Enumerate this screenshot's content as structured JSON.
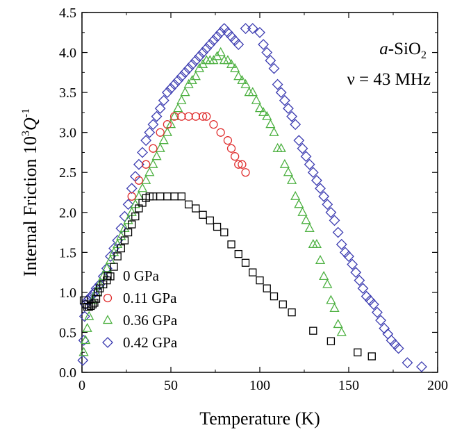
{
  "chart_data": {
    "type": "scatter",
    "title": "",
    "xlabel": "Temperature (K)",
    "ylabel": {
      "main": "Internal Friction 10",
      "exp": "3",
      "q": "Q",
      "qexp": "-1"
    },
    "xlim": [
      0,
      200
    ],
    "ylim": [
      0,
      4.5
    ],
    "xticks": [
      "0",
      "50",
      "100",
      "150",
      "200"
    ],
    "yticks": [
      "0.0",
      "0.5",
      "1.0",
      "1.5",
      "2.0",
      "2.5",
      "3.0",
      "3.5",
      "4.0",
      "4.5"
    ],
    "grid": false,
    "legend_position": "bottom-left",
    "annotations": {
      "material_italic": "a",
      "material_rest": "-SiO",
      "material_sub": "2",
      "frequency": "ν = 43 MHz"
    },
    "series": [
      {
        "name": "0 GPa",
        "marker": "square",
        "color": "#000000",
        "x": [
          1,
          2,
          3,
          4,
          5,
          6,
          7,
          8,
          9,
          10,
          12,
          14,
          16,
          18,
          20,
          22,
          24,
          26,
          28,
          30,
          32,
          34,
          36,
          38,
          40,
          44,
          48,
          52,
          56,
          60,
          64,
          68,
          72,
          76,
          80,
          84,
          88,
          92,
          96,
          100,
          104,
          108,
          113,
          118,
          130,
          140,
          155,
          163
        ],
        "y": [
          0.9,
          0.85,
          0.82,
          0.82,
          0.83,
          0.85,
          0.87,
          0.92,
          1.0,
          1.05,
          1.1,
          1.15,
          1.2,
          1.32,
          1.45,
          1.55,
          1.65,
          1.75,
          1.85,
          1.95,
          2.05,
          2.12,
          2.18,
          2.2,
          2.2,
          2.2,
          2.2,
          2.2,
          2.2,
          2.1,
          2.05,
          1.97,
          1.9,
          1.82,
          1.75,
          1.6,
          1.48,
          1.37,
          1.25,
          1.15,
          1.05,
          0.95,
          0.85,
          0.75,
          0.52,
          0.39,
          0.25,
          0.2
        ]
      },
      {
        "name": "0.11 GPa",
        "marker": "circle",
        "color": "#e03030",
        "x": [
          28,
          32,
          36,
          40,
          44,
          48,
          52,
          56,
          60,
          64,
          68,
          70,
          74,
          78,
          82,
          84,
          86,
          88,
          90,
          92
        ],
        "y": [
          2.2,
          2.4,
          2.6,
          2.8,
          3.0,
          3.1,
          3.2,
          3.2,
          3.2,
          3.2,
          3.2,
          3.2,
          3.1,
          3.0,
          2.9,
          2.8,
          2.7,
          2.6,
          2.6,
          2.5
        ]
      },
      {
        "name": "0.36 GPa",
        "marker": "triangle",
        "color": "#4cb040",
        "x": [
          1,
          2,
          3,
          4,
          6,
          8,
          10,
          12,
          14,
          16,
          18,
          20,
          22,
          24,
          26,
          28,
          30,
          32,
          34,
          36,
          38,
          40,
          42,
          44,
          46,
          48,
          50,
          52,
          54,
          56,
          58,
          60,
          62,
          64,
          66,
          68,
          70,
          72,
          74,
          76,
          78,
          80,
          82,
          84,
          86,
          88,
          90,
          92,
          94,
          96,
          98,
          100,
          102,
          104,
          106,
          108,
          110,
          112,
          114,
          116,
          118,
          120,
          122,
          124,
          126,
          128,
          130,
          132,
          134,
          136,
          138,
          140,
          142,
          144,
          146
        ],
        "y": [
          0.25,
          0.4,
          0.55,
          0.7,
          0.9,
          1.0,
          1.1,
          1.2,
          1.3,
          1.4,
          1.5,
          1.6,
          1.7,
          1.8,
          1.9,
          2.0,
          2.1,
          2.2,
          2.3,
          2.4,
          2.5,
          2.6,
          2.7,
          2.8,
          2.9,
          3.0,
          3.1,
          3.2,
          3.3,
          3.4,
          3.5,
          3.6,
          3.65,
          3.7,
          3.8,
          3.85,
          3.9,
          3.9,
          3.9,
          3.95,
          4.0,
          3.9,
          3.9,
          3.85,
          3.8,
          3.7,
          3.65,
          3.6,
          3.5,
          3.5,
          3.4,
          3.3,
          3.25,
          3.2,
          3.1,
          3.0,
          2.8,
          2.8,
          2.6,
          2.5,
          2.4,
          2.2,
          2.1,
          2.0,
          1.9,
          1.8,
          1.6,
          1.6,
          1.4,
          1.2,
          1.1,
          0.9,
          0.8,
          0.6,
          0.5
        ]
      },
      {
        "name": "0.42 GPa",
        "marker": "diamond",
        "color": "#3a3ab0",
        "x": [
          0.5,
          1,
          1.5,
          2,
          3,
          4,
          5,
          6,
          7,
          8,
          10,
          12,
          14,
          16,
          18,
          20,
          22,
          24,
          26,
          28,
          30,
          32,
          34,
          36,
          38,
          40,
          42,
          44,
          46,
          48,
          50,
          52,
          54,
          56,
          58,
          60,
          62,
          64,
          66,
          68,
          70,
          72,
          74,
          76,
          78,
          80,
          82,
          84,
          86,
          88,
          92,
          96,
          100,
          102,
          104,
          106,
          108,
          110,
          112,
          114,
          116,
          118,
          120,
          122,
          124,
          126,
          128,
          130,
          132,
          134,
          136,
          138,
          140,
          142,
          144,
          146,
          148,
          150,
          152,
          154,
          156,
          158,
          160,
          162,
          164,
          166,
          168,
          170,
          172,
          174,
          176,
          178,
          183,
          191
        ],
        "y": [
          0.15,
          0.4,
          0.7,
          0.85,
          0.9,
          0.92,
          0.95,
          0.97,
          1.0,
          1.05,
          1.1,
          1.2,
          1.3,
          1.45,
          1.55,
          1.65,
          1.8,
          1.95,
          2.1,
          2.3,
          2.45,
          2.6,
          2.75,
          2.9,
          3.0,
          3.1,
          3.2,
          3.3,
          3.4,
          3.5,
          3.55,
          3.6,
          3.65,
          3.7,
          3.75,
          3.8,
          3.85,
          3.9,
          3.95,
          4.0,
          4.05,
          4.1,
          4.15,
          4.2,
          4.25,
          4.3,
          4.25,
          4.2,
          4.15,
          4.1,
          4.3,
          4.3,
          4.25,
          4.1,
          4.0,
          3.9,
          3.8,
          3.6,
          3.5,
          3.4,
          3.3,
          3.2,
          3.1,
          2.9,
          2.8,
          2.7,
          2.6,
          2.5,
          2.4,
          2.3,
          2.2,
          2.1,
          2.0,
          1.9,
          1.75,
          1.6,
          1.5,
          1.45,
          1.35,
          1.25,
          1.15,
          1.05,
          0.95,
          0.9,
          0.85,
          0.75,
          0.65,
          0.55,
          0.48,
          0.4,
          0.35,
          0.3,
          0.12,
          0.07
        ]
      }
    ]
  }
}
